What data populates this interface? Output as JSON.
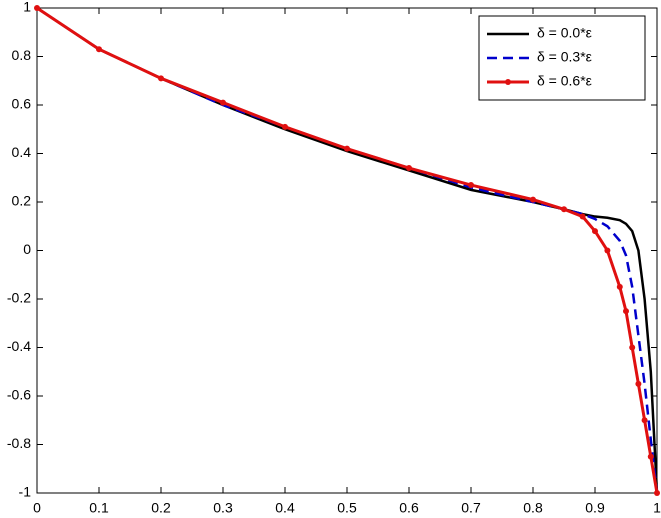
{
  "chart_data": {
    "type": "line",
    "x": [
      0,
      0.1,
      0.2,
      0.3,
      0.4,
      0.5,
      0.6,
      0.7,
      0.8,
      0.85,
      0.88,
      0.9,
      0.92,
      0.94,
      0.95,
      0.96,
      0.97,
      0.98,
      0.99,
      1
    ],
    "series": [
      {
        "name": "δ = 0.0*ε",
        "color": "#000000",
        "linestyle": "solid",
        "marker": "none",
        "values": [
          1,
          0.83,
          0.71,
          0.6,
          0.5,
          0.41,
          0.33,
          0.25,
          0.2,
          0.17,
          0.15,
          0.14,
          0.135,
          0.125,
          0.11,
          0.08,
          0.0,
          -0.2,
          -0.5,
          -1
        ]
      },
      {
        "name": "δ = 0.3*ε",
        "color": "#0000cc",
        "linestyle": "dashed",
        "marker": "none",
        "values": [
          1,
          0.83,
          0.71,
          0.6,
          0.51,
          0.42,
          0.34,
          0.26,
          0.2,
          0.17,
          0.15,
          0.13,
          0.1,
          0.04,
          -0.02,
          -0.15,
          -0.35,
          -0.55,
          -0.78,
          -1
        ]
      },
      {
        "name": "δ = 0.6*ε",
        "color": "#e01010",
        "linestyle": "solid",
        "marker": "dot",
        "values": [
          1,
          0.83,
          0.71,
          0.61,
          0.51,
          0.42,
          0.34,
          0.27,
          0.21,
          0.17,
          0.14,
          0.08,
          0.0,
          -0.15,
          -0.25,
          -0.4,
          -0.55,
          -0.7,
          -0.85,
          -1
        ]
      }
    ],
    "xlim": [
      0,
      1
    ],
    "ylim": [
      -1,
      1
    ],
    "xticks": [
      0,
      0.1,
      0.2,
      0.3,
      0.4,
      0.5,
      0.6,
      0.7,
      0.8,
      0.9,
      1
    ],
    "yticks": [
      -1,
      -0.8,
      -0.6,
      -0.4,
      -0.2,
      0,
      0.2,
      0.4,
      0.6,
      0.8,
      1
    ],
    "grid": false,
    "legend": "top-right"
  }
}
